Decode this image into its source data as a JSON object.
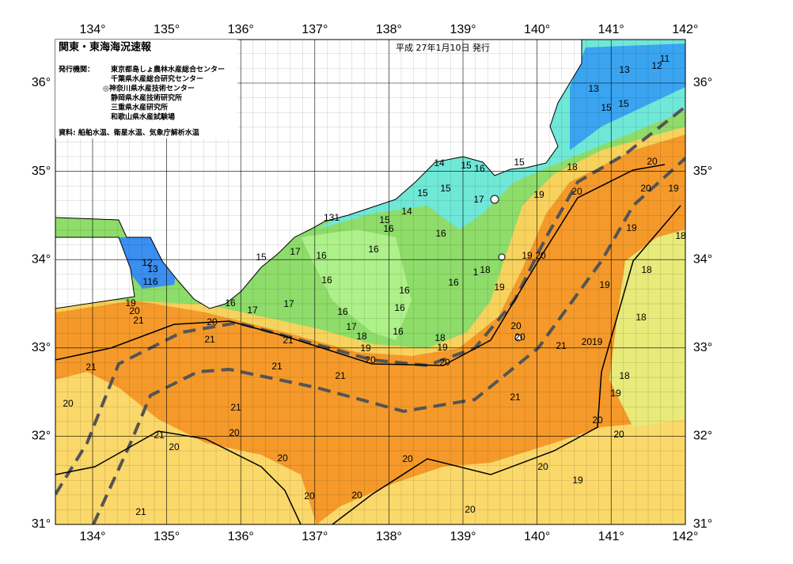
{
  "header": {
    "title": "関東・東海海況速報",
    "issued": "平成 27年1月10日 発行",
    "agencies_label": "発行機関：",
    "agencies": [
      "東京都島しょ農林水産総合センター",
      "千葉県水産総合研究センター",
      "◎神奈川県水産技術センター",
      "静岡県水産技術研究所",
      "三重県水産研究所",
      "和歌山県水産試験場"
    ],
    "sources": "資料: 船舶水温、衛星水温、気象庁解析水温"
  },
  "map": {
    "longitudes": [
      "134°",
      "135°",
      "136°",
      "137°",
      "138°",
      "139°",
      "140°",
      "141°",
      "142°"
    ],
    "latitudes": [
      "31°",
      "32°",
      "33°",
      "34°",
      "35°",
      "36°"
    ],
    "contour_labels": [
      11,
      12,
      13,
      13,
      15,
      15,
      14,
      15,
      16,
      15,
      18,
      20,
      20,
      19,
      19,
      20,
      15,
      15,
      17,
      131,
      15,
      16,
      14,
      16,
      19,
      18,
      17,
      16,
      16,
      15,
      12,
      13,
      116,
      19,
      20,
      18,
      1,
      16,
      16,
      19,
      18,
      16,
      17,
      19,
      16,
      17,
      19,
      20,
      16,
      16,
      21,
      20,
      18,
      17,
      16,
      20,
      20,
      21,
      21,
      18,
      18,
      19,
      19,
      21,
      2019,
      20,
      20,
      21,
      21,
      21,
      18,
      19,
      21,
      20,
      21,
      20,
      20,
      20,
      21,
      20,
      20,
      20,
      20,
      19,
      20,
      20,
      20,
      21
    ]
  }
}
